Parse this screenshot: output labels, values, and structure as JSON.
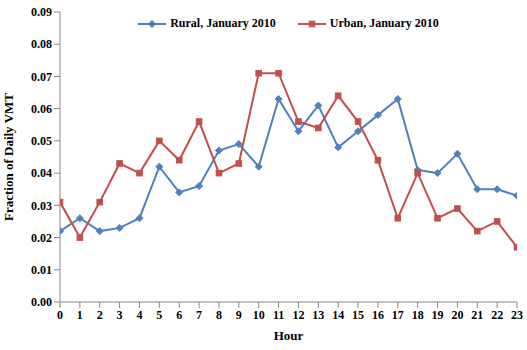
{
  "chart_data": {
    "type": "line",
    "x_label": "Hour",
    "y_label": "Fraction of Daily VMT",
    "x": [
      0,
      1,
      2,
      3,
      4,
      5,
      6,
      7,
      8,
      9,
      10,
      11,
      12,
      13,
      14,
      15,
      16,
      17,
      18,
      19,
      20,
      21,
      22,
      23
    ],
    "series": [
      {
        "name": "Rural, January 2010",
        "color": "#4F81BD",
        "marker": "diamond",
        "values": [
          0.022,
          0.026,
          0.022,
          0.023,
          0.026,
          0.042,
          0.034,
          0.036,
          0.047,
          0.049,
          0.042,
          0.063,
          0.053,
          0.061,
          0.048,
          0.053,
          0.058,
          0.063,
          0.041,
          0.04,
          0.046,
          0.035,
          0.035,
          0.033
        ]
      },
      {
        "name": "Urban, January 2010",
        "color": "#C0504D",
        "marker": "square",
        "values": [
          0.031,
          0.02,
          0.031,
          0.043,
          0.04,
          0.05,
          0.044,
          0.056,
          0.04,
          0.043,
          0.071,
          0.071,
          0.056,
          0.054,
          0.064,
          0.056,
          0.044,
          0.026,
          0.04,
          0.026,
          0.029,
          0.022,
          0.025,
          0.017
        ]
      }
    ],
    "xlim": [
      0,
      23
    ],
    "xticks": [
      0,
      1,
      2,
      3,
      4,
      5,
      6,
      7,
      8,
      9,
      10,
      11,
      12,
      13,
      14,
      15,
      16,
      17,
      18,
      19,
      20,
      21,
      22,
      23
    ],
    "ylim": [
      0,
      0.09
    ],
    "yticks": [
      {
        "value": 0,
        "label": "0.00"
      },
      {
        "value": 0.01,
        "label": "0.01"
      },
      {
        "value": 0.02,
        "label": "0.02"
      },
      {
        "value": 0.03,
        "label": "0.03"
      },
      {
        "value": 0.04,
        "label": "0.04"
      },
      {
        "value": 0.05,
        "label": "0.05"
      },
      {
        "value": 0.06,
        "label": "0.06"
      },
      {
        "value": 0.07,
        "label": "0.07"
      },
      {
        "value": 0.08,
        "label": "0.08"
      },
      {
        "value": 0.09,
        "label": "0.09"
      }
    ],
    "legend": "top",
    "grid": false
  }
}
